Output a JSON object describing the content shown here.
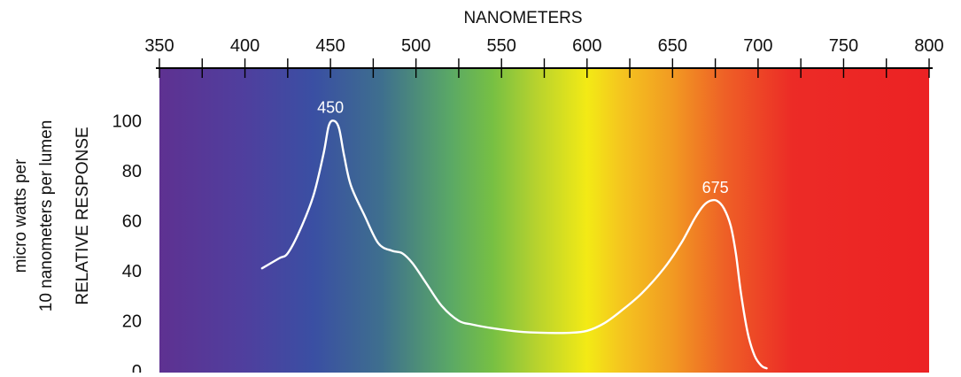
{
  "chart_data": {
    "type": "line",
    "title": "",
    "xlabel": "NANOMETERS",
    "ylabel": "RELATIVE RESPONSE",
    "ylabel_secondary": [
      "micro watts per",
      "10 nanometers per lumen"
    ],
    "xlim": [
      350,
      800
    ],
    "ylim": [
      0,
      120
    ],
    "x_ticks": [
      350,
      400,
      450,
      500,
      550,
      600,
      650,
      700,
      750,
      800
    ],
    "x_minor_ticks": [
      375,
      425,
      475,
      525,
      575,
      625,
      675,
      725,
      775
    ],
    "y_ticks": [
      0,
      20,
      40,
      60,
      80,
      100
    ],
    "x_tick_position": "top",
    "grid": false,
    "legend": "none",
    "background": "visible-spectrum-gradient",
    "spectrum_colors": [
      {
        "nm": 350,
        "color": "#5e3191"
      },
      {
        "nm": 400,
        "color": "#4f3f9e"
      },
      {
        "nm": 440,
        "color": "#3a4fa3"
      },
      {
        "nm": 480,
        "color": "#3e6f8e"
      },
      {
        "nm": 520,
        "color": "#5aa866"
      },
      {
        "nm": 545,
        "color": "#77c043"
      },
      {
        "nm": 570,
        "color": "#b6d22e"
      },
      {
        "nm": 600,
        "color": "#f3ea15"
      },
      {
        "nm": 620,
        "color": "#f4c51f"
      },
      {
        "nm": 650,
        "color": "#f29a22"
      },
      {
        "nm": 680,
        "color": "#ee6126"
      },
      {
        "nm": 720,
        "color": "#ec2b26"
      },
      {
        "nm": 800,
        "color": "#ec2224"
      }
    ],
    "line_color": "#ffffff",
    "series": [
      {
        "x": [
          410,
          420,
          425,
          432,
          440,
          446,
          449,
          452,
          455,
          458,
          462,
          470,
          478,
          486,
          492,
          498,
          506,
          515,
          525,
          533,
          545,
          560,
          575,
          590,
          600,
          610,
          620,
          632,
          645,
          655,
          663,
          668,
          672,
          676,
          680,
          684,
          687,
          690,
          694,
          698,
          702,
          705
        ],
        "y": [
          41,
          45,
          47,
          56,
          70,
          87,
          98,
          100,
          97,
          86,
          74,
          62,
          51,
          48,
          47,
          43,
          35,
          26,
          20,
          18.5,
          17,
          15.7,
          15.2,
          15.2,
          16,
          19,
          24,
          31,
          41,
          51,
          61,
          66,
          68,
          68,
          65,
          58,
          47,
          31,
          15,
          6,
          2,
          1
        ]
      }
    ],
    "annotations": [
      {
        "text": "450",
        "x": 450,
        "y": 100
      },
      {
        "text": "675",
        "x": 675,
        "y": 68
      }
    ]
  }
}
